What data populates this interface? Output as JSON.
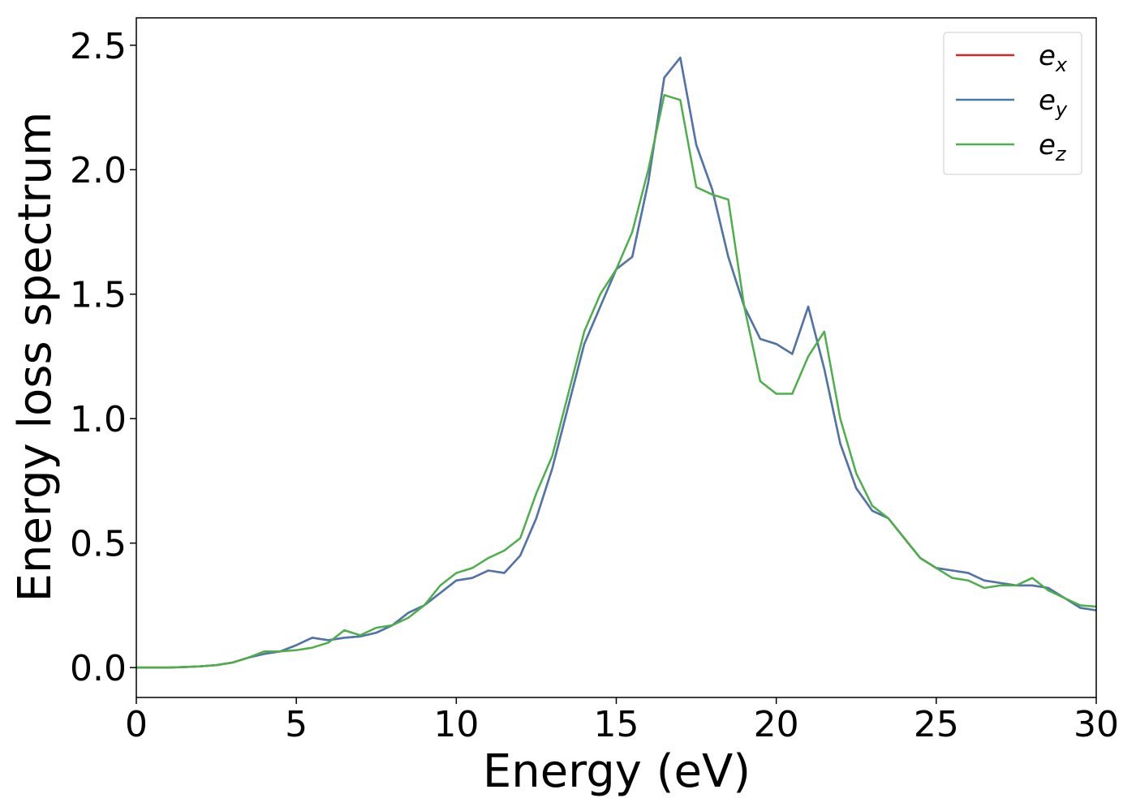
{
  "chart_data": {
    "type": "line",
    "xlabel": "Energy (eV)",
    "ylabel": "Energy loss spectrum",
    "x": [
      0,
      0.5,
      1,
      1.5,
      2,
      2.5,
      3,
      3.5,
      4,
      4.5,
      5,
      5.5,
      6,
      6.5,
      7,
      7.5,
      8,
      8.5,
      9,
      9.5,
      10,
      10.5,
      11,
      11.5,
      12,
      12.5,
      13,
      13.5,
      14,
      14.5,
      15,
      15.5,
      16,
      16.5,
      17,
      17.5,
      18,
      18.5,
      19,
      19.5,
      20,
      20.5,
      21,
      21.5,
      22,
      22.5,
      23,
      23.5,
      24,
      24.5,
      25,
      25.5,
      26,
      26.5,
      27,
      27.5,
      28,
      28.5,
      29,
      29.5,
      30
    ],
    "series": [
      {
        "name": "e_x",
        "color": "#d62728",
        "values": [
          0,
          0,
          0,
          0.002,
          0.005,
          0.01,
          0.02,
          0.04,
          0.055,
          0.065,
          0.09,
          0.12,
          0.11,
          0.12,
          0.125,
          0.14,
          0.17,
          0.22,
          0.25,
          0.3,
          0.35,
          0.36,
          0.39,
          0.38,
          0.45,
          0.6,
          0.8,
          1.05,
          1.3,
          1.45,
          1.6,
          1.65,
          1.95,
          2.37,
          2.45,
          2.1,
          1.92,
          1.65,
          1.45,
          1.32,
          1.3,
          1.26,
          1.45,
          1.2,
          0.9,
          0.72,
          0.63,
          0.6,
          0.52,
          0.44,
          0.4,
          0.39,
          0.38,
          0.35,
          0.34,
          0.33,
          0.33,
          0.32,
          0.28,
          0.24,
          0.23
        ]
      },
      {
        "name": "e_y",
        "color": "#4a78ac",
        "values": [
          0,
          0,
          0,
          0.002,
          0.005,
          0.01,
          0.02,
          0.04,
          0.055,
          0.065,
          0.09,
          0.12,
          0.11,
          0.12,
          0.125,
          0.14,
          0.17,
          0.22,
          0.25,
          0.3,
          0.35,
          0.36,
          0.39,
          0.38,
          0.45,
          0.6,
          0.8,
          1.05,
          1.3,
          1.45,
          1.6,
          1.65,
          1.95,
          2.37,
          2.45,
          2.1,
          1.92,
          1.65,
          1.45,
          1.32,
          1.3,
          1.26,
          1.45,
          1.2,
          0.9,
          0.72,
          0.63,
          0.6,
          0.52,
          0.44,
          0.4,
          0.39,
          0.38,
          0.35,
          0.34,
          0.33,
          0.33,
          0.32,
          0.28,
          0.24,
          0.23
        ]
      },
      {
        "name": "e_z",
        "color": "#4daf4a",
        "values": [
          0,
          0,
          0,
          0.002,
          0.005,
          0.01,
          0.02,
          0.04,
          0.065,
          0.065,
          0.07,
          0.08,
          0.1,
          0.15,
          0.13,
          0.16,
          0.17,
          0.2,
          0.25,
          0.33,
          0.38,
          0.4,
          0.44,
          0.47,
          0.52,
          0.7,
          0.85,
          1.1,
          1.35,
          1.5,
          1.6,
          1.75,
          2.0,
          2.3,
          2.28,
          1.93,
          1.9,
          1.88,
          1.45,
          1.15,
          1.1,
          1.1,
          1.25,
          1.35,
          1.0,
          0.78,
          0.65,
          0.6,
          0.52,
          0.44,
          0.4,
          0.36,
          0.35,
          0.32,
          0.33,
          0.33,
          0.36,
          0.31,
          0.28,
          0.25,
          0.245
        ]
      }
    ],
    "xlim": [
      0,
      30
    ],
    "xticks": [
      0,
      5,
      10,
      15,
      20,
      25,
      30
    ],
    "ylim": [
      -0.12,
      2.61
    ],
    "yticks": [
      {
        "value": 0,
        "label": "0.0"
      },
      0.5,
      {
        "value": 1,
        "label": "1.0"
      },
      1.5,
      {
        "value": 2,
        "label": "2.0"
      },
      2.5
    ],
    "legend": "upper right",
    "grid": false
  }
}
